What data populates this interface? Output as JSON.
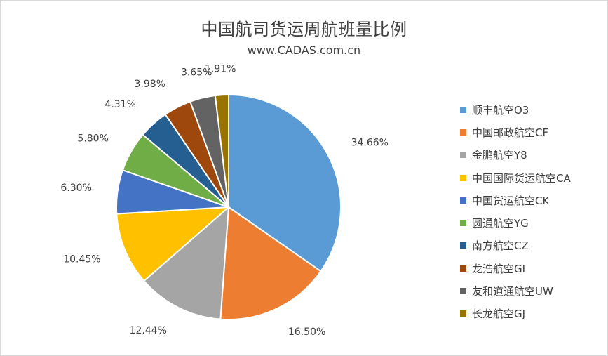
{
  "chart_data": {
    "type": "pie",
    "title": "中国航司货运周航班量比例",
    "subtitle": "www.CADAS.com.cn",
    "legend_position": "right",
    "slices": [
      {
        "name": "顺丰航空O3",
        "value": 34.66,
        "label": "34.66%",
        "color": "#5B9BD5"
      },
      {
        "name": "中国邮政航空CF",
        "value": 16.5,
        "label": "16.50%",
        "color": "#ED7D31"
      },
      {
        "name": "金鹏航空Y8",
        "value": 12.44,
        "label": "12.44%",
        "color": "#A5A5A5"
      },
      {
        "name": "中国国际货运航空CA",
        "value": 10.45,
        "label": "10.45%",
        "color": "#FFC000"
      },
      {
        "name": "中国货运航空CK",
        "value": 6.3,
        "label": "6.30%",
        "color": "#4472C4"
      },
      {
        "name": "圆通航空YG",
        "value": 5.8,
        "label": "5.80%",
        "color": "#70AD47"
      },
      {
        "name": "南方航空CZ",
        "value": 4.31,
        "label": "4.31%",
        "color": "#255E91"
      },
      {
        "name": "龙浩航空GI",
        "value": 3.98,
        "label": "3.98%",
        "color": "#9E480E"
      },
      {
        "name": "友和道通航空UW",
        "value": 3.65,
        "label": "3.65%",
        "color": "#636363"
      },
      {
        "name": "长龙航空GJ",
        "value": 1.91,
        "label": "1.91%",
        "color": "#997300"
      }
    ]
  }
}
